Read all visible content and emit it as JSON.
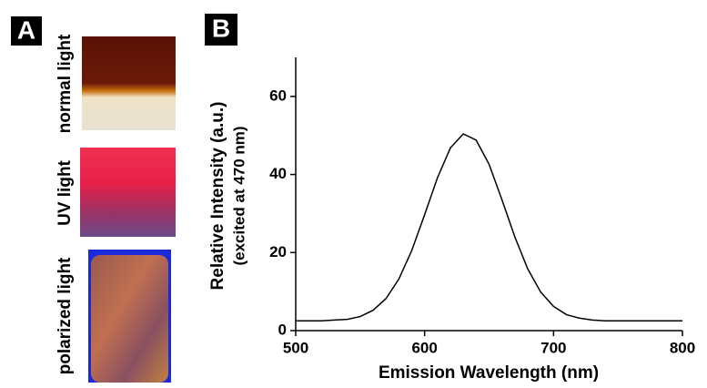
{
  "panel_a": {
    "label": "A",
    "photo_labels": [
      "normal light",
      "UV light",
      "polarized light"
    ]
  },
  "chart_data": {
    "type": "line",
    "panel_label": "B",
    "xlabel": "Emission Wavelength (nm)",
    "ylabel": "Relative Intensity (a.u.)",
    "ylabel_note": "(excited at 470 nm)",
    "x": [
      500,
      510,
      520,
      530,
      540,
      550,
      560,
      570,
      580,
      590,
      600,
      610,
      620,
      630,
      640,
      650,
      660,
      670,
      680,
      690,
      700,
      710,
      720,
      730,
      740,
      750,
      760,
      770,
      780,
      790,
      800
    ],
    "series": [
      {
        "color": "#000000",
        "values": [
          2.5,
          2.5,
          2.5,
          2.7,
          2.9,
          3.6,
          5.2,
          8.2,
          13.2,
          20.5,
          29.7,
          39.2,
          46.8,
          50.4,
          48.8,
          42.6,
          33.5,
          24.0,
          15.8,
          9.9,
          6.2,
          4.1,
          3.2,
          2.7,
          2.5,
          2.5,
          2.5,
          2.5,
          2.5,
          2.5,
          2.5
        ]
      }
    ],
    "xlim": [
      500,
      800
    ],
    "xticks": [
      500,
      600,
      700,
      800
    ],
    "ylim": [
      0,
      70
    ],
    "yticks": [
      0,
      20,
      40,
      60
    ]
  }
}
